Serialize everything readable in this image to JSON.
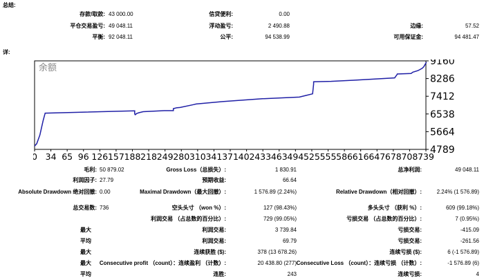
{
  "summary": {
    "title": "总结:",
    "deposit_label": "存款/取款:",
    "deposit_value": "43 000.00",
    "credit_label": "信贷便利:",
    "credit_value": "0.00",
    "closed_pl_label": "平仓交易盈亏:",
    "closed_pl_value": "49 048.11",
    "floating_pl_label": "浮动盈亏:",
    "floating_pl_value": "2 490.88",
    "margin_label": "边缘:",
    "margin_value": "57.52",
    "balance_label": "平衡:",
    "balance_value": "92 048.11",
    "equity_label": "公平:",
    "equity_value": "94 538.99",
    "free_margin_label": "可用保证金:",
    "free_margin_value": "94 481.47"
  },
  "details_title": "详:",
  "chart_data": {
    "type": "line",
    "title": "余额",
    "y_ticks": [
      "9160",
      "8286",
      "7412",
      "6538",
      "5664",
      "4789"
    ],
    "x_ticks": [
      "0",
      "34",
      "65",
      "96",
      "126",
      "157",
      "188",
      "218",
      "249",
      "280",
      "310",
      "341",
      "371",
      "402",
      "433",
      "463",
      "494",
      "525",
      "555",
      "586",
      "616",
      "647",
      "678",
      "708",
      "739"
    ],
    "ylim": [
      4789,
      9160
    ],
    "xlim": [
      0,
      739
    ],
    "color": "#1f1fa6",
    "series": [
      {
        "x": [
          0,
          4,
          10,
          16,
          20,
          189,
          189,
          190,
          193,
          197,
          205,
          245,
          255,
          262,
          262,
          262,
          265,
          268,
          275,
          300,
          305,
          355,
          430,
          500,
          512,
          525,
          527,
          527,
          560,
          600,
          680,
          685,
          685,
          711,
          714,
          724,
          727,
          732,
          735,
          740
        ],
        "y": [
          4950,
          5070,
          5500,
          6200,
          6580,
          6690,
          6540,
          6500,
          6560,
          6600,
          6650,
          6700,
          6700,
          6700,
          6780,
          6800,
          6820,
          6840,
          6860,
          7000,
          7030,
          7150,
          7290,
          7370,
          7450,
          7530,
          8020,
          8130,
          8150,
          8200,
          8320,
          8500,
          8510,
          8540,
          8600,
          8680,
          8720,
          8790,
          8870,
          9100
        ]
      }
    ]
  },
  "stats": {
    "gross_profit_label": "毛利:",
    "gross_profit_value": "50 879.02",
    "gross_loss_label": "Gross Loss（总损失）:",
    "gross_loss_value": "1 830.91",
    "net_profit_label": "总净利润:",
    "net_profit_value": "49 048.11",
    "profit_factor_label": "利润因子:",
    "profit_factor_value": "27.79",
    "expected_payoff_label": "预期收益:",
    "expected_payoff_value": "66.64",
    "abs_dd_label": "Absolute Drawdown 绝对回撤:",
    "abs_dd_value": "0.00",
    "max_dd_label": "Maximal Drawdown（最大回撤）:",
    "max_dd_value": "1 576.89 (2.24%)",
    "rel_dd_label": "Relative Drawdown（相对回撤）:",
    "rel_dd_value": "2.24% (1 576.89)",
    "total_trades_label": "总交易数:",
    "total_trades_value": "736",
    "short_label": "空头头寸 （won %）:",
    "short_value": "127 (98.43%)",
    "long_label": "多头头寸 （获利 %）:",
    "long_value": "609 (99.18%)",
    "profit_trades_label": "利润交易 （占总数的百分比）:",
    "profit_trades_value": "729 (99.05%)",
    "loss_trades_label": "亏损交易 （占总数的百分比）:",
    "loss_trades_value": "7 (0.95%)",
    "largest_label": "最大",
    "largest_profit_label": "利润交易:",
    "largest_profit_value": "3 739.84",
    "largest_loss_label": "亏损交易:",
    "largest_loss_value": "-415.09",
    "average_label": "平均",
    "average_profit_label": "利润交易:",
    "average_profit_value": "69.79",
    "average_loss_label": "亏损交易:",
    "average_loss_value": "-261.56",
    "max_consec_label": "最大",
    "consec_wins_label": "连续获胜 ($):",
    "consec_wins_value": "378 (13 678.26)",
    "consec_losses_label": "连续亏损 ($):",
    "consec_losses_value": "6 (-1 576.89)",
    "max_consec2_label": "最大",
    "consec_profit_label": "Consecutive profit （count）：连续盈利 （计数）:",
    "consec_profit_value": "20 438.80 (277)",
    "consec_loss_label": "Consecutive Loss （count）：连续亏损 （计数）:",
    "consec_loss_value": "-1 576.89 (6)",
    "avg_consec_label": "平均",
    "avg_wins_label": "连胜:",
    "avg_wins_value": "243",
    "avg_losses_label": "连续亏损:",
    "avg_losses_value": "4"
  }
}
